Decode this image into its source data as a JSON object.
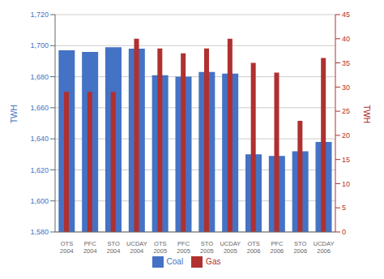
{
  "chart_data": {
    "type": "bar",
    "categories": [
      "OTS\n2004",
      "PFC\n2004",
      "STO\n2004",
      "UCDAY\n2004",
      "OTS\n2005",
      "PFC\n2005",
      "STO\n2005",
      "UCDAY\n2005",
      "OTS\n2006",
      "PFC\n2006",
      "STO\n2006",
      "UCDAY\n2006"
    ],
    "series": [
      {
        "name": "Coal",
        "color": "#4472C4",
        "values": [
          1697,
          1696,
          1699,
          1698,
          1681,
          1680,
          1683,
          1682,
          1630,
          1629,
          1632,
          1638
        ]
      },
      {
        "name": "Gas",
        "color": "#B03030",
        "values": [
          29,
          29,
          29,
          40,
          38,
          37,
          38,
          40,
          35,
          33,
          23,
          36
        ],
        "axis": "y2"
      }
    ],
    "ylabel": "TWH",
    "y2label": "TWH",
    "ylim": [
      1580,
      1720
    ],
    "yticks": [
      {
        "value": 1580,
        "label": "1,580"
      },
      {
        "value": 1600,
        "label": "1,600"
      },
      {
        "value": 1620,
        "label": "1,620"
      },
      {
        "value": 1640,
        "label": "1,640"
      },
      {
        "value": 1660,
        "label": "1,660"
      },
      {
        "value": 1680,
        "label": "1,680"
      },
      {
        "value": 1700,
        "label": "1,700"
      },
      {
        "value": 1720,
        "label": "1,720"
      }
    ],
    "y2lim": [
      0,
      45
    ],
    "y2ticks": [
      0,
      5,
      10,
      15,
      20,
      25,
      30,
      35,
      40,
      45
    ],
    "grid": true,
    "legend": "bottom"
  }
}
